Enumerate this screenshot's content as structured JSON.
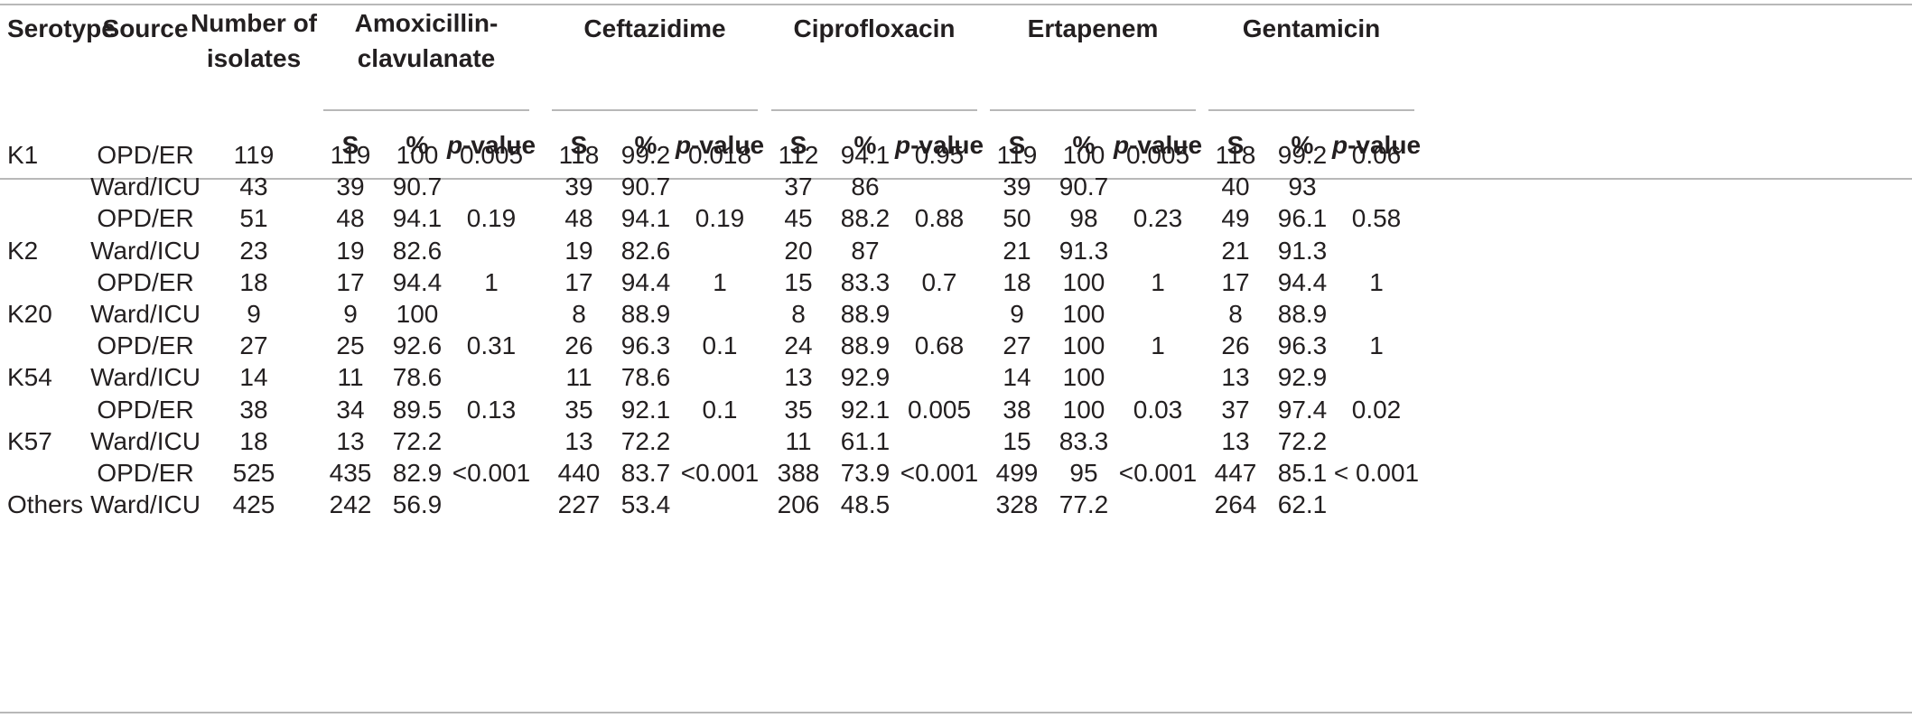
{
  "table": {
    "headers": {
      "serotype": "Serotype",
      "source": "Source",
      "isolates": "Number of isolates",
      "drugs": [
        "Amoxicillin-clavulanate",
        "Ceftazidime",
        "Ciprofloxacin",
        "Ertapenem",
        "Gentamicin"
      ]
    },
    "subheaders": {
      "s": "S",
      "pct": "%",
      "p_prefix": "p",
      "p_suffix": "-value"
    },
    "serotypes": [
      "K1",
      "K2",
      "K20",
      "K54",
      "K57",
      "Others"
    ],
    "rows": [
      {
        "source": "OPD/ER",
        "n": "119",
        "drugs": [
          [
            "119",
            "100",
            "0.005"
          ],
          [
            "118",
            "99.2",
            "0.018"
          ],
          [
            "112",
            "94.1",
            "0.95"
          ],
          [
            "119",
            "100",
            "0.005"
          ],
          [
            "118",
            "99.2",
            "0.06"
          ]
        ]
      },
      {
        "source": "Ward/ICU",
        "n": "43",
        "drugs": [
          [
            "39",
            "90.7",
            ""
          ],
          [
            "39",
            "90.7",
            ""
          ],
          [
            "37",
            "86",
            ""
          ],
          [
            "39",
            "90.7",
            ""
          ],
          [
            "40",
            "93",
            ""
          ]
        ]
      },
      {
        "source": "OPD/ER",
        "n": "51",
        "drugs": [
          [
            "48",
            "94.1",
            "0.19"
          ],
          [
            "48",
            "94.1",
            "0.19"
          ],
          [
            "45",
            "88.2",
            "0.88"
          ],
          [
            "50",
            "98",
            "0.23"
          ],
          [
            "49",
            "96.1",
            "0.58"
          ]
        ]
      },
      {
        "source": "Ward/ICU",
        "n": "23",
        "drugs": [
          [
            "19",
            "82.6",
            ""
          ],
          [
            "19",
            "82.6",
            ""
          ],
          [
            "20",
            "87",
            ""
          ],
          [
            "21",
            "91.3",
            ""
          ],
          [
            "21",
            "91.3",
            ""
          ]
        ]
      },
      {
        "source": "OPD/ER",
        "n": "18",
        "drugs": [
          [
            "17",
            "94.4",
            "1"
          ],
          [
            "17",
            "94.4",
            "1"
          ],
          [
            "15",
            "83.3",
            "0.7"
          ],
          [
            "18",
            "100",
            "1"
          ],
          [
            "17",
            "94.4",
            "1"
          ]
        ]
      },
      {
        "source": "Ward/ICU",
        "n": "9",
        "drugs": [
          [
            "9",
            "100",
            ""
          ],
          [
            "8",
            "88.9",
            ""
          ],
          [
            "8",
            "88.9",
            ""
          ],
          [
            "9",
            "100",
            ""
          ],
          [
            "8",
            "88.9",
            ""
          ]
        ]
      },
      {
        "source": "OPD/ER",
        "n": "27",
        "drugs": [
          [
            "25",
            "92.6",
            "0.31"
          ],
          [
            "26",
            "96.3",
            "0.1"
          ],
          [
            "24",
            "88.9",
            "0.68"
          ],
          [
            "27",
            "100",
            "1"
          ],
          [
            "26",
            "96.3",
            "1"
          ]
        ]
      },
      {
        "source": "Ward/ICU",
        "n": "14",
        "drugs": [
          [
            "11",
            "78.6",
            ""
          ],
          [
            "11",
            "78.6",
            ""
          ],
          [
            "13",
            "92.9",
            ""
          ],
          [
            "14",
            "100",
            ""
          ],
          [
            "13",
            "92.9",
            ""
          ]
        ]
      },
      {
        "source": "OPD/ER",
        "n": "38",
        "drugs": [
          [
            "34",
            "89.5",
            "0.13"
          ],
          [
            "35",
            "92.1",
            "0.1"
          ],
          [
            "35",
            "92.1",
            "0.005"
          ],
          [
            "38",
            "100",
            "0.03"
          ],
          [
            "37",
            "97.4",
            "0.02"
          ]
        ]
      },
      {
        "source": "Ward/ICU",
        "n": "18",
        "drugs": [
          [
            "13",
            "72.2",
            ""
          ],
          [
            "13",
            "72.2",
            ""
          ],
          [
            "11",
            "61.1",
            ""
          ],
          [
            "15",
            "83.3",
            ""
          ],
          [
            "13",
            "72.2",
            ""
          ]
        ]
      },
      {
        "source": "OPD/ER",
        "n": "525",
        "drugs": [
          [
            "435",
            "82.9",
            "<0.001"
          ],
          [
            "440",
            "83.7",
            "<0.001"
          ],
          [
            "388",
            "73.9",
            "<0.001"
          ],
          [
            "499",
            "95",
            "<0.001"
          ],
          [
            "447",
            "85.1",
            "< 0.001"
          ]
        ]
      },
      {
        "source": "Ward/ICU",
        "n": "425",
        "drugs": [
          [
            "242",
            "56.9",
            ""
          ],
          [
            "227",
            "53.4",
            ""
          ],
          [
            "206",
            "48.5",
            ""
          ],
          [
            "328",
            "77.2",
            ""
          ],
          [
            "264",
            "62.1",
            ""
          ]
        ]
      }
    ]
  }
}
